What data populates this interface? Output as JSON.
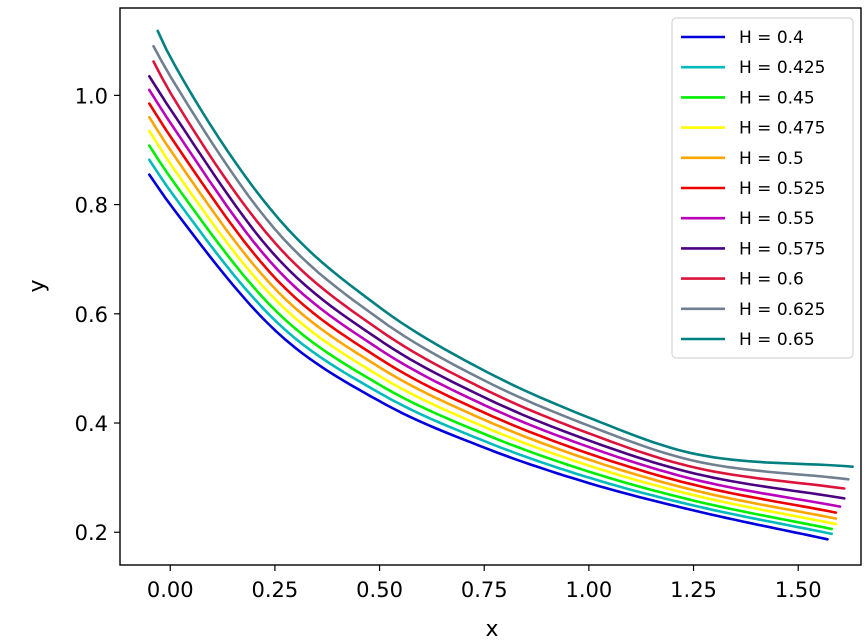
{
  "chart_data": {
    "type": "line",
    "title": "",
    "xlabel": "x",
    "ylabel": "y",
    "xlim": [
      -0.12,
      1.65
    ],
    "ylim": [
      0.14,
      1.16
    ],
    "x_ticks": [
      0.0,
      0.25,
      0.5,
      0.75,
      1.0,
      1.25,
      1.5
    ],
    "x_tick_labels": [
      "0.00",
      "0.25",
      "0.50",
      "0.75",
      "1.00",
      "1.25",
      "1.50"
    ],
    "y_ticks": [
      0.2,
      0.4,
      0.6,
      0.8,
      1.0
    ],
    "y_tick_labels": [
      "0.2",
      "0.4",
      "0.6",
      "0.8",
      "1.0"
    ],
    "grid": false,
    "legend_position": "top-right",
    "series": [
      {
        "name": "H = 0.4",
        "color": "#0000dd",
        "x": [
          -0.05,
          0.0,
          0.25,
          0.5,
          0.75,
          1.0,
          1.25,
          1.57
        ],
        "y": [
          0.855,
          0.8,
          0.57,
          0.44,
          0.355,
          0.29,
          0.24,
          0.187
        ]
      },
      {
        "name": "H = 0.425",
        "color": "#00bbbb",
        "x": [
          -0.05,
          0.0,
          0.25,
          0.5,
          0.75,
          1.0,
          1.25,
          1.58
        ],
        "y": [
          0.882,
          0.825,
          0.588,
          0.455,
          0.367,
          0.3,
          0.249,
          0.197
        ]
      },
      {
        "name": "H = 0.45",
        "color": "#00ee00",
        "x": [
          -0.05,
          0.0,
          0.25,
          0.5,
          0.75,
          1.0,
          1.25,
          1.58
        ],
        "y": [
          0.908,
          0.85,
          0.607,
          0.47,
          0.38,
          0.311,
          0.258,
          0.206
        ]
      },
      {
        "name": "H = 0.475",
        "color": "#ffff00",
        "x": [
          -0.05,
          0.0,
          0.25,
          0.5,
          0.75,
          1.0,
          1.25,
          1.59
        ],
        "y": [
          0.935,
          0.875,
          0.627,
          0.486,
          0.393,
          0.322,
          0.268,
          0.215
        ]
      },
      {
        "name": "H = 0.5",
        "color": "#ffa500",
        "x": [
          -0.05,
          0.0,
          0.25,
          0.5,
          0.75,
          1.0,
          1.25,
          1.59
        ],
        "y": [
          0.96,
          0.9,
          0.646,
          0.502,
          0.406,
          0.333,
          0.277,
          0.225
        ]
      },
      {
        "name": "H = 0.525",
        "color": "#ee0000",
        "x": [
          -0.05,
          0.0,
          0.25,
          0.5,
          0.75,
          1.0,
          1.25,
          1.59
        ],
        "y": [
          0.985,
          0.925,
          0.666,
          0.518,
          0.419,
          0.344,
          0.287,
          0.236
        ]
      },
      {
        "name": "H = 0.55",
        "color": "#bb00bb",
        "x": [
          -0.05,
          0.0,
          0.25,
          0.5,
          0.75,
          1.0,
          1.25,
          1.6
        ],
        "y": [
          1.01,
          0.95,
          0.686,
          0.535,
          0.433,
          0.356,
          0.297,
          0.247
        ]
      },
      {
        "name": "H = 0.575",
        "color": "#4b0082",
        "x": [
          -0.05,
          0.0,
          0.25,
          0.5,
          0.75,
          1.0,
          1.25,
          1.61
        ],
        "y": [
          1.035,
          0.975,
          0.707,
          0.552,
          0.447,
          0.368,
          0.308,
          0.262
        ]
      },
      {
        "name": "H = 0.6",
        "color": "#dc143c",
        "x": [
          -0.04,
          0.0,
          0.25,
          0.5,
          0.75,
          1.0,
          1.25,
          1.61
        ],
        "y": [
          1.062,
          1.005,
          0.73,
          0.57,
          0.462,
          0.381,
          0.319,
          0.28
        ]
      },
      {
        "name": "H = 0.625",
        "color": "#708090",
        "x": [
          -0.04,
          0.0,
          0.25,
          0.5,
          0.75,
          1.0,
          1.25,
          1.62
        ],
        "y": [
          1.09,
          1.035,
          0.755,
          0.59,
          0.478,
          0.395,
          0.331,
          0.297
        ]
      },
      {
        "name": "H = 0.65",
        "color": "#008080",
        "x": [
          -0.03,
          0.0,
          0.25,
          0.5,
          0.75,
          1.0,
          1.25,
          1.63
        ],
        "y": [
          1.118,
          1.07,
          0.782,
          0.612,
          0.496,
          0.41,
          0.344,
          0.32
        ]
      }
    ]
  }
}
